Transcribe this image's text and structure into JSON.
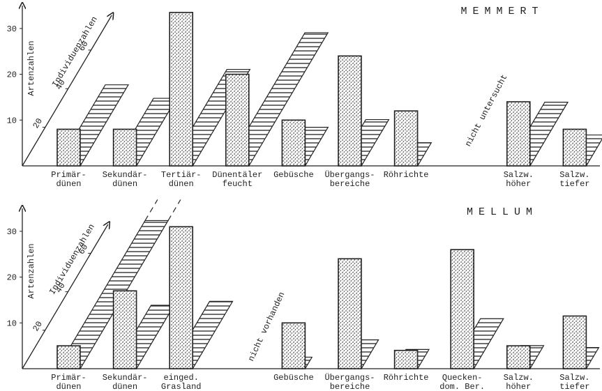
{
  "chart_data": [
    {
      "type": "bar",
      "title": "MEMMERT",
      "categories": [
        "Primär-\ndünen",
        "Sekundär-\ndünen",
        "Tertiär-\ndünen",
        "Dünentäler\nfeucht",
        "Gebüsche",
        "Übergangs-\nbereiche",
        "Röhrichte",
        null,
        "Salzw.\nhöher",
        "Salzw.\ntiefer"
      ],
      "series": [
        {
          "name": "Artenzahlen",
          "color": "#222222",
          "values": [
            8,
            8,
            33.5,
            20,
            10,
            24,
            12,
            null,
            14,
            8
          ]
        },
        {
          "name": "Individuenzahlen",
          "color": "#222222",
          "axis": "y2",
          "values": [
            42,
            35,
            50,
            69,
            20,
            24,
            12,
            null,
            33,
            16
          ]
        }
      ],
      "ylim": [
        0,
        35
      ],
      "yticks": [
        10,
        20,
        30
      ],
      "y2lim": [
        0,
        78
      ],
      "y2ticks": [
        20,
        40,
        60
      ],
      "annotations": [
        "nicht untersucht"
      ]
    },
    {
      "type": "bar",
      "title": "MELLUM",
      "categories": [
        "Primär-\ndünen",
        "Sekundär-\ndünen",
        "einged.\nGrasland",
        null,
        "Gebüsche",
        "Übergangs-\nbereiche",
        "Röhrichte",
        "Quecken-\ndom. Ber.",
        "Salzw.\nhöher",
        "Salzw.\ntiefer"
      ],
      "series": [
        {
          "name": "Artenzahlen",
          "color": "#222222",
          "values": [
            5,
            17,
            31,
            null,
            10,
            24,
            4,
            26,
            5,
            11.5
          ]
        },
        {
          "name": "Individuenzahlen",
          "color": "#222222",
          "axis": "y2",
          "values": [
            77,
            33,
            35,
            null,
            6,
            15,
            10,
            26,
            12,
            11
          ]
        }
      ],
      "ylim": [
        0,
        35
      ],
      "yticks": [
        10,
        20,
        30
      ],
      "y2lim": [
        0,
        75
      ],
      "y2ticks": [
        20,
        40,
        60
      ],
      "annotations": [
        "nicht vorhanden"
      ]
    }
  ]
}
